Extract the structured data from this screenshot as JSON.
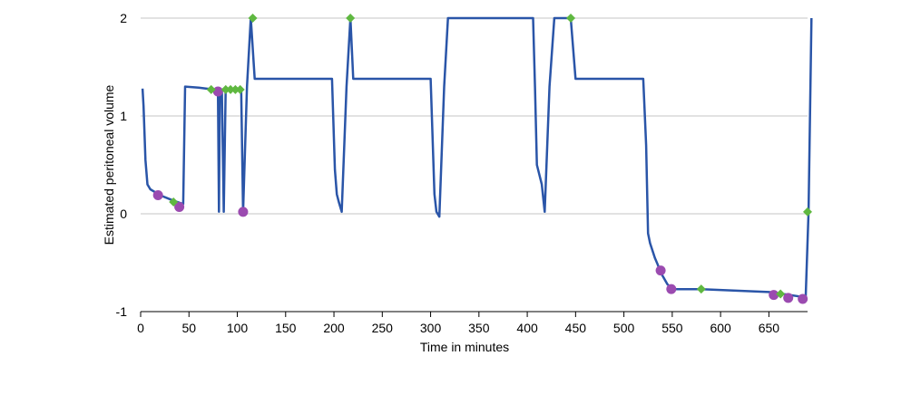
{
  "chart_data": {
    "type": "line",
    "xlabel": "Time in minutes",
    "ylabel": "Estimated peritoneal volume",
    "xlim": [
      0,
      690
    ],
    "ylim": [
      -1,
      2
    ],
    "xticks": [
      0,
      50,
      100,
      150,
      200,
      250,
      300,
      350,
      400,
      450,
      500,
      550,
      600,
      650
    ],
    "yticks": [
      -1,
      0,
      1,
      2
    ],
    "ytick_labels": [
      "-1",
      "0",
      "1",
      "2"
    ],
    "grid": "horizontal",
    "colors": {
      "line": "#2a55a8",
      "diamond": "#5fb840",
      "circle": "#9b4bb0",
      "grid": "#d9d9d9"
    },
    "series": [
      {
        "values": [
          [
            2,
            1.28
          ],
          [
            3,
            1.1
          ],
          [
            5,
            0.55
          ],
          [
            7,
            0.3
          ],
          [
            10,
            0.25
          ],
          [
            15,
            0.22
          ],
          [
            20,
            0.19
          ],
          [
            30,
            0.15
          ],
          [
            38,
            0.12
          ],
          [
            44,
            0.1
          ],
          [
            46,
            1.3
          ],
          [
            60,
            1.29
          ],
          [
            75,
            1.27
          ],
          [
            80,
            1.25
          ],
          [
            81,
            0.02
          ],
          [
            82,
            1.25
          ],
          [
            84,
            1.27
          ],
          [
            86,
            0.02
          ],
          [
            88,
            1.27
          ],
          [
            100,
            1.28
          ],
          [
            104,
            1.28
          ],
          [
            106,
            0.02
          ],
          [
            110,
            1.3
          ],
          [
            114,
            2.0
          ],
          [
            118,
            1.38
          ],
          [
            198,
            1.38
          ],
          [
            201,
            0.45
          ],
          [
            203,
            0.2
          ],
          [
            205,
            0.12
          ],
          [
            208,
            0.02
          ],
          [
            213,
            1.3
          ],
          [
            217,
            2.0
          ],
          [
            220,
            1.38
          ],
          [
            300,
            1.38
          ],
          [
            304,
            0.2
          ],
          [
            306,
            0.02
          ],
          [
            309,
            -0.03
          ],
          [
            314,
            1.3
          ],
          [
            318,
            2.0
          ],
          [
            406,
            2.0
          ],
          [
            408,
            1.3
          ],
          [
            410,
            0.5
          ],
          [
            415,
            0.3
          ],
          [
            418,
            0.02
          ],
          [
            423,
            1.3
          ],
          [
            428,
            2.0
          ],
          [
            445,
            2.0
          ],
          [
            450,
            1.38
          ],
          [
            520,
            1.38
          ],
          [
            523,
            0.7
          ],
          [
            525,
            -0.2
          ],
          [
            527,
            -0.3
          ],
          [
            532,
            -0.45
          ],
          [
            535,
            -0.52
          ],
          [
            538,
            -0.6
          ],
          [
            545,
            -0.72
          ],
          [
            550,
            -0.77
          ],
          [
            580,
            -0.77
          ],
          [
            650,
            -0.8
          ],
          [
            665,
            -0.82
          ],
          [
            685,
            -0.85
          ],
          [
            688,
            -0.86
          ],
          [
            691,
            0.02
          ],
          [
            694,
            2.0
          ]
        ]
      }
    ],
    "diamond_markers": [
      [
        116,
        2.0
      ],
      [
        217,
        2.0
      ],
      [
        445,
        2.0
      ],
      [
        34,
        0.12
      ],
      [
        73,
        1.27
      ],
      [
        88,
        1.27
      ],
      [
        93,
        1.27
      ],
      [
        98,
        1.27
      ],
      [
        103,
        1.27
      ],
      [
        580,
        -0.77
      ],
      [
        662,
        -0.82
      ],
      [
        690,
        0.02
      ]
    ],
    "circle_markers": [
      [
        18,
        0.19
      ],
      [
        40,
        0.07
      ],
      [
        80,
        1.25
      ],
      [
        106,
        0.02
      ],
      [
        538,
        -0.58
      ],
      [
        549,
        -0.77
      ],
      [
        655,
        -0.83
      ],
      [
        670,
        -0.86
      ],
      [
        685,
        -0.87
      ]
    ]
  }
}
